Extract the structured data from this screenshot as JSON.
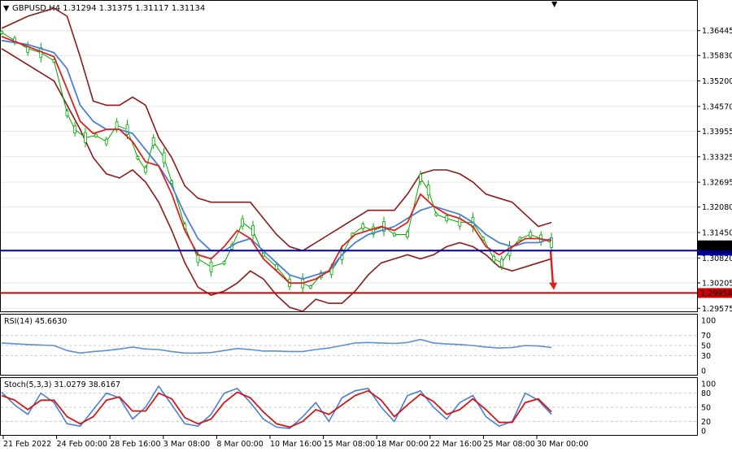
{
  "chart_data": [
    {
      "type": "candlestick",
      "symbol": "GBPUSD,H4",
      "ohlc": [
        "1.31294",
        "1.31375",
        "1.31117",
        "1.31134"
      ],
      "header": "GBPUSD,H4  1.31294 1.31375 1.31117 1.31134",
      "price_ticks": [
        "1.36445",
        "1.35830",
        "1.35200",
        "1.34570",
        "1.33955",
        "1.33325",
        "1.32695",
        "1.32080",
        "1.31450",
        "1.30820",
        "1.30205",
        "1.29575"
      ],
      "ylim": [
        1.295,
        1.368
      ],
      "current_price_label": "1.31134",
      "horizontal_lines": [
        {
          "price": 1.31003,
          "label": "1.31003",
          "color": "#0000aa"
        },
        {
          "price": 1.29954,
          "label": "1.29954",
          "color": "#cc0000"
        }
      ],
      "arrow": {
        "from_price": 1.31,
        "to_price": 1.3003,
        "color": "#e02020"
      },
      "x_labels": [
        "21 Feb 2022",
        "24 Feb 00:00",
        "28 Feb 16:00",
        "3 Mar 08:00",
        "8 Mar 00:00",
        "10 Mar 16:00",
        "15 Mar 08:00",
        "18 Mar 00:00",
        "22 Mar 16:00",
        "25 Mar 08:00",
        "30 Mar 00:00"
      ],
      "price_path": [
        [
          0,
          1.364
        ],
        [
          5,
          1.362
        ],
        [
          10,
          1.36
        ],
        [
          15,
          1.359
        ],
        [
          20,
          1.357
        ],
        [
          25,
          1.344
        ],
        [
          28,
          1.34
        ],
        [
          32,
          1.338
        ],
        [
          36,
          1.3385
        ],
        [
          40,
          1.337
        ],
        [
          44,
          1.341
        ],
        [
          48,
          1.34
        ],
        [
          52,
          1.333
        ],
        [
          55,
          1.33
        ],
        [
          58,
          1.337
        ],
        [
          62,
          1.333
        ],
        [
          65,
          1.327
        ],
        [
          70,
          1.316
        ],
        [
          75,
          1.308
        ],
        [
          80,
          1.306
        ],
        [
          85,
          1.307
        ],
        [
          88,
          1.311
        ],
        [
          92,
          1.317
        ],
        [
          96,
          1.315
        ],
        [
          100,
          1.309
        ],
        [
          105,
          1.306
        ],
        [
          110,
          1.302
        ],
        [
          115,
          1.302
        ],
        [
          118,
          1.301
        ],
        [
          122,
          1.304
        ],
        [
          126,
          1.305
        ],
        [
          130,
          1.309
        ],
        [
          134,
          1.314
        ],
        [
          138,
          1.316
        ],
        [
          142,
          1.315
        ],
        [
          146,
          1.316
        ],
        [
          150,
          1.314
        ],
        [
          155,
          1.314
        ],
        [
          160,
          1.328
        ],
        [
          163,
          1.325
        ],
        [
          166,
          1.319
        ],
        [
          170,
          1.318
        ],
        [
          175,
          1.317
        ],
        [
          180,
          1.317
        ],
        [
          184,
          1.313
        ],
        [
          188,
          1.308
        ],
        [
          191,
          1.307
        ],
        [
          194,
          1.31
        ],
        [
          198,
          1.313
        ],
        [
          202,
          1.314
        ],
        [
          206,
          1.313
        ],
        [
          210,
          1.312
        ]
      ],
      "bb_upper": [
        [
          0,
          1.365
        ],
        [
          10,
          1.368
        ],
        [
          20,
          1.37
        ],
        [
          25,
          1.368
        ],
        [
          30,
          1.358
        ],
        [
          35,
          1.347
        ],
        [
          40,
          1.346
        ],
        [
          45,
          1.346
        ],
        [
          50,
          1.348
        ],
        [
          55,
          1.346
        ],
        [
          60,
          1.338
        ],
        [
          65,
          1.333
        ],
        [
          70,
          1.326
        ],
        [
          75,
          1.323
        ],
        [
          80,
          1.322
        ],
        [
          85,
          1.322
        ],
        [
          90,
          1.322
        ],
        [
          95,
          1.322
        ],
        [
          100,
          1.318
        ],
        [
          105,
          1.314
        ],
        [
          110,
          1.311
        ],
        [
          115,
          1.31
        ],
        [
          120,
          1.312
        ],
        [
          125,
          1.314
        ],
        [
          130,
          1.316
        ],
        [
          135,
          1.318
        ],
        [
          140,
          1.32
        ],
        [
          145,
          1.32
        ],
        [
          150,
          1.32
        ],
        [
          155,
          1.324
        ],
        [
          160,
          1.329
        ],
        [
          165,
          1.33
        ],
        [
          170,
          1.33
        ],
        [
          175,
          1.329
        ],
        [
          180,
          1.327
        ],
        [
          185,
          1.324
        ],
        [
          190,
          1.323
        ],
        [
          195,
          1.322
        ],
        [
          200,
          1.319
        ],
        [
          205,
          1.316
        ],
        [
          210,
          1.317
        ]
      ],
      "bb_lower": [
        [
          0,
          1.36
        ],
        [
          10,
          1.356
        ],
        [
          20,
          1.352
        ],
        [
          25,
          1.346
        ],
        [
          30,
          1.34
        ],
        [
          35,
          1.333
        ],
        [
          40,
          1.329
        ],
        [
          45,
          1.328
        ],
        [
          50,
          1.33
        ],
        [
          55,
          1.327
        ],
        [
          60,
          1.322
        ],
        [
          65,
          1.315
        ],
        [
          70,
          1.307
        ],
        [
          75,
          1.301
        ],
        [
          80,
          1.299
        ],
        [
          85,
          1.3
        ],
        [
          90,
          1.302
        ],
        [
          95,
          1.305
        ],
        [
          100,
          1.303
        ],
        [
          105,
          1.299
        ],
        [
          110,
          1.296
        ],
        [
          115,
          1.295
        ],
        [
          120,
          1.298
        ],
        [
          125,
          1.297
        ],
        [
          130,
          1.297
        ],
        [
          135,
          1.3
        ],
        [
          140,
          1.304
        ],
        [
          145,
          1.307
        ],
        [
          150,
          1.308
        ],
        [
          155,
          1.309
        ],
        [
          160,
          1.308
        ],
        [
          165,
          1.309
        ],
        [
          170,
          1.311
        ],
        [
          175,
          1.312
        ],
        [
          180,
          1.311
        ],
        [
          185,
          1.309
        ],
        [
          190,
          1.306
        ],
        [
          195,
          1.305
        ],
        [
          200,
          1.306
        ],
        [
          205,
          1.307
        ],
        [
          210,
          1.308
        ]
      ],
      "ma_blue": [
        [
          0,
          1.362
        ],
        [
          10,
          1.361
        ],
        [
          20,
          1.359
        ],
        [
          25,
          1.355
        ],
        [
          30,
          1.346
        ],
        [
          35,
          1.342
        ],
        [
          40,
          1.34
        ],
        [
          45,
          1.34
        ],
        [
          50,
          1.339
        ],
        [
          55,
          1.335
        ],
        [
          60,
          1.331
        ],
        [
          65,
          1.326
        ],
        [
          70,
          1.319
        ],
        [
          75,
          1.313
        ],
        [
          80,
          1.31
        ],
        [
          85,
          1.31
        ],
        [
          90,
          1.312
        ],
        [
          95,
          1.313
        ],
        [
          100,
          1.31
        ],
        [
          105,
          1.307
        ],
        [
          110,
          1.304
        ],
        [
          115,
          1.303
        ],
        [
          120,
          1.304
        ],
        [
          125,
          1.305
        ],
        [
          130,
          1.309
        ],
        [
          135,
          1.312
        ],
        [
          140,
          1.314
        ],
        [
          145,
          1.315
        ],
        [
          150,
          1.316
        ],
        [
          155,
          1.318
        ],
        [
          160,
          1.32
        ],
        [
          165,
          1.321
        ],
        [
          170,
          1.32
        ],
        [
          175,
          1.319
        ],
        [
          180,
          1.317
        ],
        [
          185,
          1.314
        ],
        [
          190,
          1.312
        ],
        [
          195,
          1.311
        ],
        [
          200,
          1.312
        ],
        [
          205,
          1.312
        ],
        [
          210,
          1.313
        ]
      ],
      "ma_red": [
        [
          0,
          1.363
        ],
        [
          10,
          1.3605
        ],
        [
          20,
          1.358
        ],
        [
          25,
          1.35
        ],
        [
          30,
          1.342
        ],
        [
          35,
          1.339
        ],
        [
          40,
          1.34
        ],
        [
          45,
          1.34
        ],
        [
          50,
          1.337
        ],
        [
          55,
          1.332
        ],
        [
          60,
          1.331
        ],
        [
          65,
          1.324
        ],
        [
          70,
          1.315
        ],
        [
          75,
          1.309
        ],
        [
          80,
          1.308
        ],
        [
          85,
          1.311
        ],
        [
          90,
          1.315
        ],
        [
          95,
          1.313
        ],
        [
          100,
          1.308
        ],
        [
          105,
          1.305
        ],
        [
          110,
          1.302
        ],
        [
          115,
          1.302
        ],
        [
          120,
          1.303
        ],
        [
          125,
          1.305
        ],
        [
          130,
          1.311
        ],
        [
          135,
          1.314
        ],
        [
          140,
          1.315
        ],
        [
          145,
          1.316
        ],
        [
          150,
          1.315
        ],
        [
          155,
          1.317
        ],
        [
          160,
          1.324
        ],
        [
          165,
          1.321
        ],
        [
          170,
          1.319
        ],
        [
          175,
          1.318
        ],
        [
          180,
          1.316
        ],
        [
          185,
          1.311
        ],
        [
          190,
          1.309
        ],
        [
          195,
          1.311
        ],
        [
          200,
          1.313
        ],
        [
          205,
          1.313
        ],
        [
          210,
          1.3125
        ]
      ]
    },
    {
      "type": "line",
      "label": "RSI(14) 45.6630",
      "ticks": [
        "100",
        "70",
        "50",
        "30",
        "0"
      ],
      "ylim": [
        0,
        100
      ],
      "values": [
        [
          0,
          55
        ],
        [
          10,
          52
        ],
        [
          20,
          50
        ],
        [
          25,
          40
        ],
        [
          30,
          35
        ],
        [
          35,
          38
        ],
        [
          40,
          40
        ],
        [
          45,
          43
        ],
        [
          50,
          47
        ],
        [
          55,
          43
        ],
        [
          60,
          42
        ],
        [
          65,
          38
        ],
        [
          70,
          35
        ],
        [
          75,
          35
        ],
        [
          80,
          36
        ],
        [
          85,
          40
        ],
        [
          90,
          44
        ],
        [
          95,
          42
        ],
        [
          100,
          39
        ],
        [
          105,
          39
        ],
        [
          110,
          38
        ],
        [
          115,
          38
        ],
        [
          120,
          42
        ],
        [
          125,
          45
        ],
        [
          130,
          50
        ],
        [
          135,
          55
        ],
        [
          140,
          56
        ],
        [
          145,
          55
        ],
        [
          150,
          54
        ],
        [
          155,
          56
        ],
        [
          160,
          62
        ],
        [
          165,
          55
        ],
        [
          170,
          53
        ],
        [
          175,
          52
        ],
        [
          180,
          50
        ],
        [
          185,
          47
        ],
        [
          190,
          45
        ],
        [
          195,
          46
        ],
        [
          200,
          50
        ],
        [
          205,
          49
        ],
        [
          210,
          46
        ]
      ]
    },
    {
      "type": "line",
      "label": "Stoch(5,3,3) 31.0279 38.6167",
      "ticks": [
        "100",
        "80",
        "50",
        "20",
        "0"
      ],
      "ylim": [
        0,
        100
      ],
      "main": [
        [
          0,
          82
        ],
        [
          5,
          55
        ],
        [
          10,
          35
        ],
        [
          15,
          80
        ],
        [
          20,
          60
        ],
        [
          25,
          15
        ],
        [
          30,
          10
        ],
        [
          35,
          45
        ],
        [
          40,
          80
        ],
        [
          45,
          70
        ],
        [
          50,
          25
        ],
        [
          55,
          50
        ],
        [
          60,
          95
        ],
        [
          65,
          55
        ],
        [
          70,
          15
        ],
        [
          75,
          10
        ],
        [
          80,
          35
        ],
        [
          85,
          80
        ],
        [
          90,
          90
        ],
        [
          95,
          60
        ],
        [
          100,
          25
        ],
        [
          105,
          8
        ],
        [
          110,
          5
        ],
        [
          115,
          30
        ],
        [
          120,
          60
        ],
        [
          125,
          20
        ],
        [
          130,
          70
        ],
        [
          135,
          85
        ],
        [
          140,
          90
        ],
        [
          145,
          50
        ],
        [
          150,
          20
        ],
        [
          155,
          75
        ],
        [
          160,
          85
        ],
        [
          165,
          50
        ],
        [
          170,
          25
        ],
        [
          175,
          60
        ],
        [
          180,
          75
        ],
        [
          185,
          30
        ],
        [
          190,
          10
        ],
        [
          195,
          20
        ],
        [
          200,
          80
        ],
        [
          205,
          65
        ],
        [
          210,
          35
        ]
      ],
      "signal": [
        [
          0,
          75
        ],
        [
          5,
          65
        ],
        [
          10,
          45
        ],
        [
          15,
          65
        ],
        [
          20,
          65
        ],
        [
          25,
          30
        ],
        [
          30,
          15
        ],
        [
          35,
          30
        ],
        [
          40,
          65
        ],
        [
          45,
          72
        ],
        [
          50,
          42
        ],
        [
          55,
          42
        ],
        [
          60,
          80
        ],
        [
          65,
          68
        ],
        [
          70,
          28
        ],
        [
          75,
          15
        ],
        [
          80,
          25
        ],
        [
          85,
          60
        ],
        [
          90,
          82
        ],
        [
          95,
          70
        ],
        [
          100,
          40
        ],
        [
          105,
          15
        ],
        [
          110,
          8
        ],
        [
          115,
          20
        ],
        [
          120,
          45
        ],
        [
          125,
          35
        ],
        [
          130,
          55
        ],
        [
          135,
          75
        ],
        [
          140,
          85
        ],
        [
          145,
          65
        ],
        [
          150,
          30
        ],
        [
          155,
          55
        ],
        [
          160,
          78
        ],
        [
          165,
          62
        ],
        [
          170,
          35
        ],
        [
          175,
          45
        ],
        [
          180,
          68
        ],
        [
          185,
          45
        ],
        [
          190,
          18
        ],
        [
          195,
          18
        ],
        [
          200,
          60
        ],
        [
          205,
          68
        ],
        [
          210,
          40
        ]
      ]
    }
  ],
  "colors": {
    "candle": "#00aa00",
    "bollinger": "#8b1a1a",
    "ma_fast": "#e02020",
    "ma_slow": "#4a7fd4",
    "rsi": "#5b8fd6",
    "stoch_main": "#4a7fd4",
    "stoch_signal": "#d01818",
    "support_line": "#0000aa",
    "target_line": "#cc0000"
  }
}
